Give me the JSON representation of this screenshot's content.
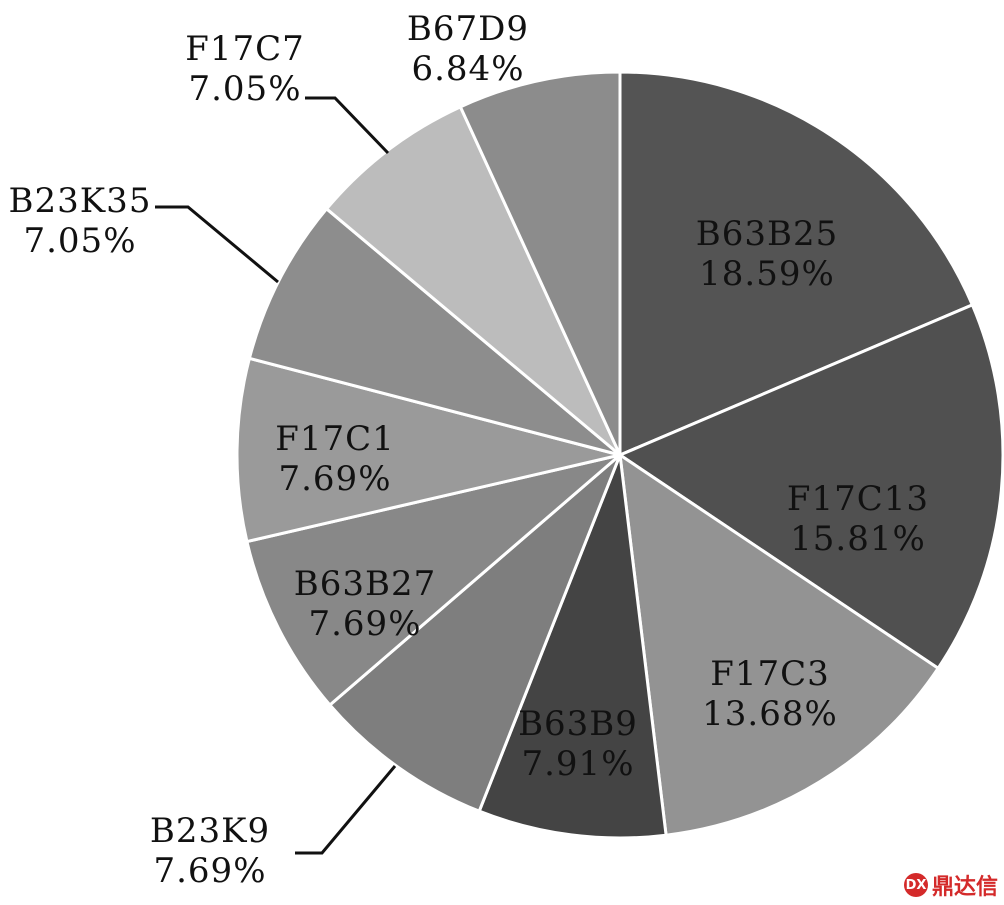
{
  "chart_data": {
    "type": "pie",
    "title": "",
    "start_angle_deg": 0,
    "direction": "clockwise",
    "slices": [
      {
        "label": "B63B25",
        "value": 18.59,
        "value_label": "18.59%",
        "color": "#545454",
        "label_position": "inside"
      },
      {
        "label": "F17C13",
        "value": 15.81,
        "value_label": "15.81%",
        "color": "#505050",
        "label_position": "inside"
      },
      {
        "label": "F17C3",
        "value": 13.68,
        "value_label": "13.68%",
        "color": "#939393",
        "label_position": "inside"
      },
      {
        "label": "B63B9",
        "value": 7.91,
        "value_label": "7.91%",
        "color": "#444444",
        "label_position": "inside"
      },
      {
        "label": "B23K9",
        "value": 7.69,
        "value_label": "7.69%",
        "color": "#7e7e7e",
        "label_position": "outside"
      },
      {
        "label": "B63B27",
        "value": 7.69,
        "value_label": "7.69%",
        "color": "#888888",
        "label_position": "inside"
      },
      {
        "label": "F17C1",
        "value": 7.69,
        "value_label": "7.69%",
        "color": "#9a9a9a",
        "label_position": "inside"
      },
      {
        "label": "B23K35",
        "value": 7.05,
        "value_label": "7.05%",
        "color": "#8d8d8d",
        "label_position": "outside"
      },
      {
        "label": "F17C7",
        "value": 7.05,
        "value_label": "7.05%",
        "color": "#bcbcbc",
        "label_position": "outside"
      },
      {
        "label": "B67D9",
        "value": 6.84,
        "value_label": "6.84%",
        "color": "#8c8c8c",
        "label_position": "outside"
      }
    ]
  },
  "watermark": {
    "logo_text": "DX",
    "text": "鼎达信"
  }
}
